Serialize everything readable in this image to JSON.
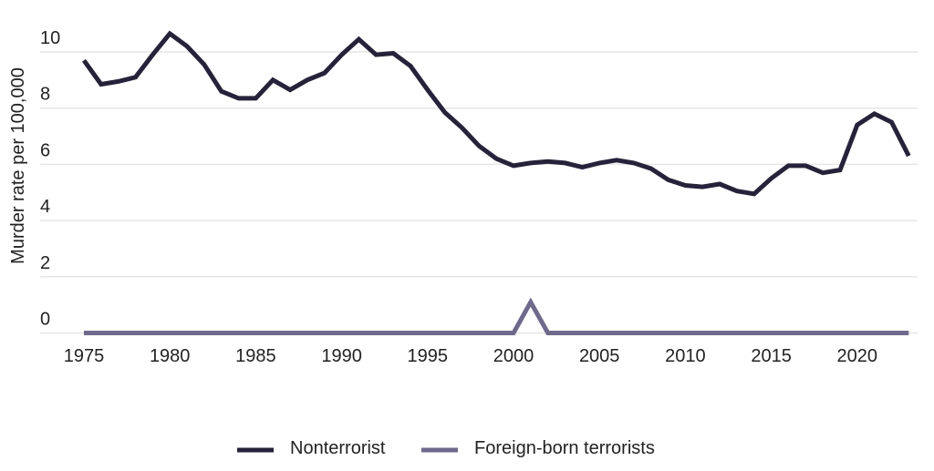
{
  "chart_data": {
    "type": "line",
    "title": "",
    "xlabel": "",
    "ylabel": "Murder rate per 100,000",
    "ylim": [
      0,
      10.7
    ],
    "xlim": [
      1975,
      2023
    ],
    "yticks": [
      "0",
      "2",
      "4",
      "6",
      "8",
      "10"
    ],
    "xticks": [
      "1975",
      "1980",
      "1985",
      "1990",
      "1995",
      "2000",
      "2005",
      "2010",
      "2015",
      "2020"
    ],
    "grid": true,
    "legend_position": "bottom-center",
    "x": [
      1975,
      1976,
      1977,
      1978,
      1979,
      1980,
      1981,
      1982,
      1983,
      1984,
      1985,
      1986,
      1987,
      1988,
      1989,
      1990,
      1991,
      1992,
      1993,
      1994,
      1995,
      1996,
      1997,
      1998,
      1999,
      2000,
      2001,
      2002,
      2003,
      2004,
      2005,
      2006,
      2007,
      2008,
      2009,
      2010,
      2011,
      2012,
      2013,
      2014,
      2015,
      2016,
      2017,
      2018,
      2019,
      2020,
      2021,
      2022,
      2023
    ],
    "series": [
      {
        "name": "Nonterrorist",
        "color": "#26223a",
        "values": [
          9.7,
          8.85,
          8.95,
          9.1,
          9.9,
          10.65,
          10.2,
          9.55,
          8.6,
          8.35,
          8.35,
          9.0,
          8.65,
          9.0,
          9.25,
          9.9,
          10.45,
          9.9,
          9.95,
          9.5,
          8.65,
          7.85,
          7.3,
          6.65,
          6.2,
          5.95,
          6.05,
          6.1,
          6.05,
          5.9,
          6.05,
          6.15,
          6.05,
          5.85,
          5.45,
          5.25,
          5.2,
          5.3,
          5.05,
          4.95,
          5.5,
          5.95,
          5.95,
          5.7,
          5.8,
          7.4,
          7.8,
          7.5,
          6.3
        ]
      },
      {
        "name": "Foreign-born terrorists",
        "color": "#6f6a8c",
        "values": [
          0,
          0,
          0,
          0,
          0,
          0,
          0,
          0,
          0,
          0,
          0,
          0,
          0,
          0,
          0,
          0,
          0,
          0,
          0,
          0,
          0,
          0,
          0,
          0,
          0,
          0,
          1.1,
          0,
          0,
          0,
          0,
          0,
          0,
          0,
          0,
          0,
          0,
          0,
          0,
          0,
          0,
          0,
          0,
          0,
          0,
          0,
          0,
          0,
          0
        ]
      }
    ]
  }
}
